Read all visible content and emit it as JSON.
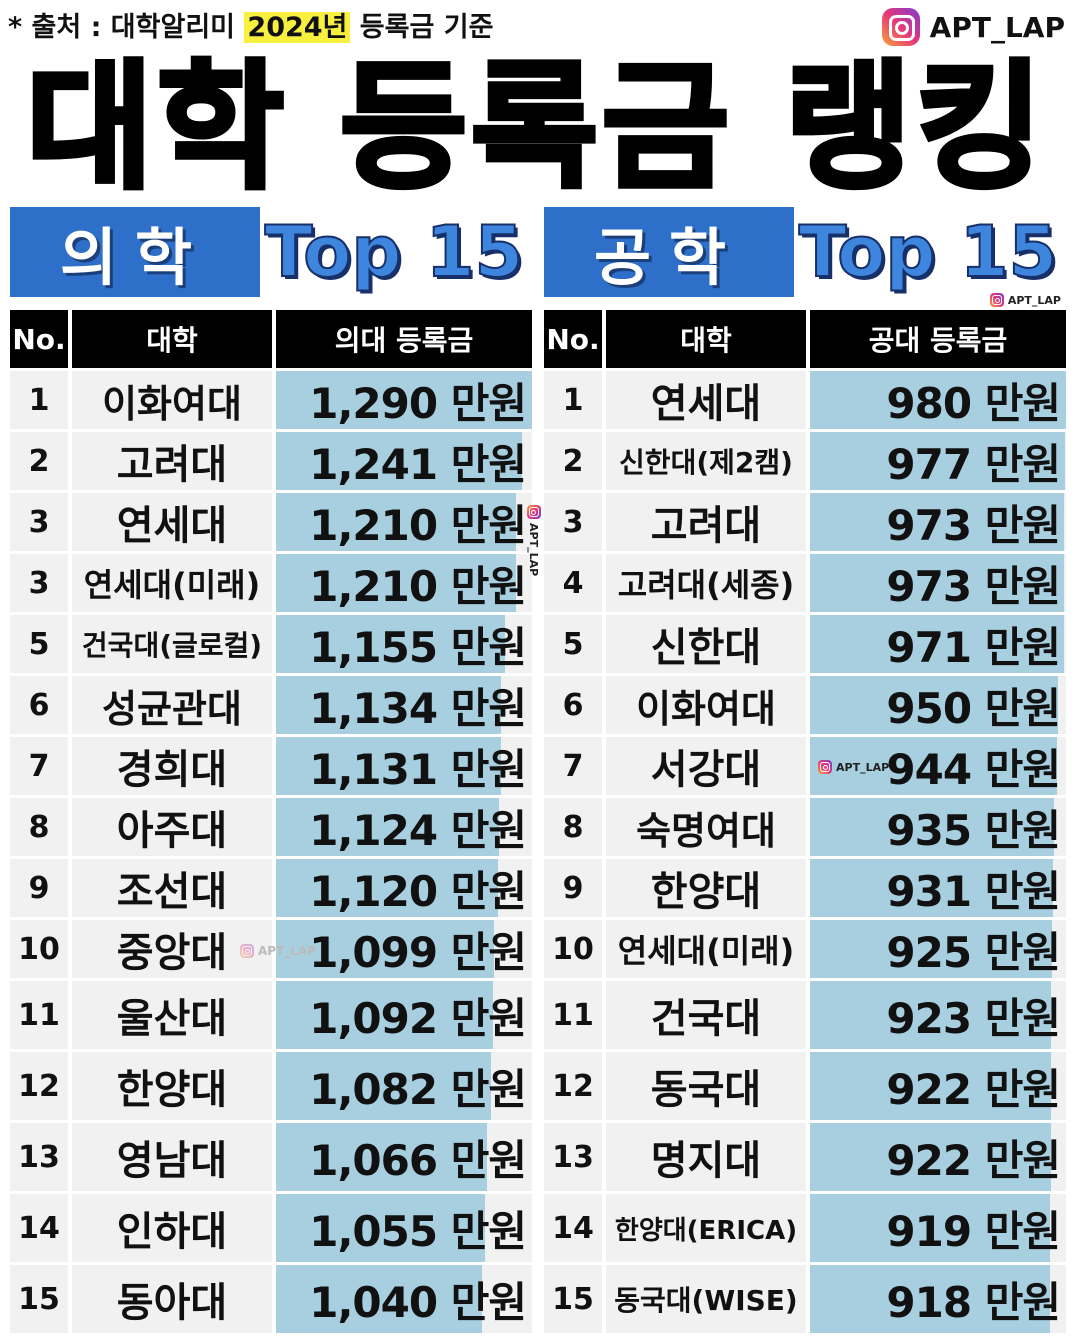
{
  "source": {
    "prefix": "* 출처 : 대학알리미 ",
    "year": "2024년",
    "suffix": " 등록금 기준"
  },
  "brand": {
    "handle": "APT_LAP",
    "small": "APT_LAP"
  },
  "title": "대학 등록금 랭킹",
  "colors": {
    "subject_bg": "#2e6fc9",
    "topn": "#3e86dd",
    "bar": "#a7cfe0",
    "cell": "#f1f1f1",
    "header": "#000000",
    "highlight": "#f7f03f"
  },
  "chart_data": [
    {
      "type": "bar",
      "subject": "의학",
      "topn": "Top 15",
      "columns": [
        "No.",
        "대학",
        "의대 등록금"
      ],
      "unit": "만원",
      "ranks": [
        "1",
        "2",
        "3",
        "3",
        "5",
        "6",
        "7",
        "8",
        "9",
        "10",
        "11",
        "12",
        "13",
        "14",
        "15"
      ],
      "categories": [
        "이화여대",
        "고려대",
        "연세대",
        "연세대(미래)",
        "건국대(글로컬)",
        "성균관대",
        "경희대",
        "아주대",
        "조선대",
        "중앙대",
        "울산대",
        "한양대",
        "영남대",
        "인하대",
        "동아대"
      ],
      "values": [
        1290,
        1241,
        1210,
        1210,
        1155,
        1134,
        1131,
        1124,
        1120,
        1099,
        1092,
        1082,
        1066,
        1055,
        1040
      ],
      "labels": [
        "1,290 만원",
        "1,241 만원",
        "1,210 만원",
        "1,210 만원",
        "1,155 만원",
        "1,134 만원",
        "1,131 만원",
        "1,124 만원",
        "1,120 만원",
        "1,099 만원",
        "1,092 만원",
        "1,082 만원",
        "1,066 만원",
        "1,055 만원",
        "1,040 만원"
      ]
    },
    {
      "type": "bar",
      "subject": "공학",
      "topn": "Top 15",
      "columns": [
        "No.",
        "대학",
        "공대 등록금"
      ],
      "unit": "만원",
      "ranks": [
        "1",
        "2",
        "3",
        "4",
        "5",
        "6",
        "7",
        "8",
        "9",
        "10",
        "11",
        "12",
        "13",
        "14",
        "15"
      ],
      "categories": [
        "연세대",
        "신한대(제2캠)",
        "고려대",
        "고려대(세종)",
        "신한대",
        "이화여대",
        "서강대",
        "숙명여대",
        "한양대",
        "연세대(미래)",
        "건국대",
        "동국대",
        "명지대",
        "한양대(ERICA)",
        "동국대(WISE)"
      ],
      "values": [
        980,
        977,
        973,
        973,
        971,
        950,
        944,
        935,
        931,
        925,
        923,
        922,
        922,
        919,
        918
      ],
      "labels": [
        "980 만원",
        "977 만원",
        "973 만원",
        "973 만원",
        "971 만원",
        "950 만원",
        "944 만원",
        "935 만원",
        "931 만원",
        "925 만원",
        "923 만원",
        "922 만원",
        "922 만원",
        "919 만원",
        "918 만원"
      ]
    }
  ]
}
